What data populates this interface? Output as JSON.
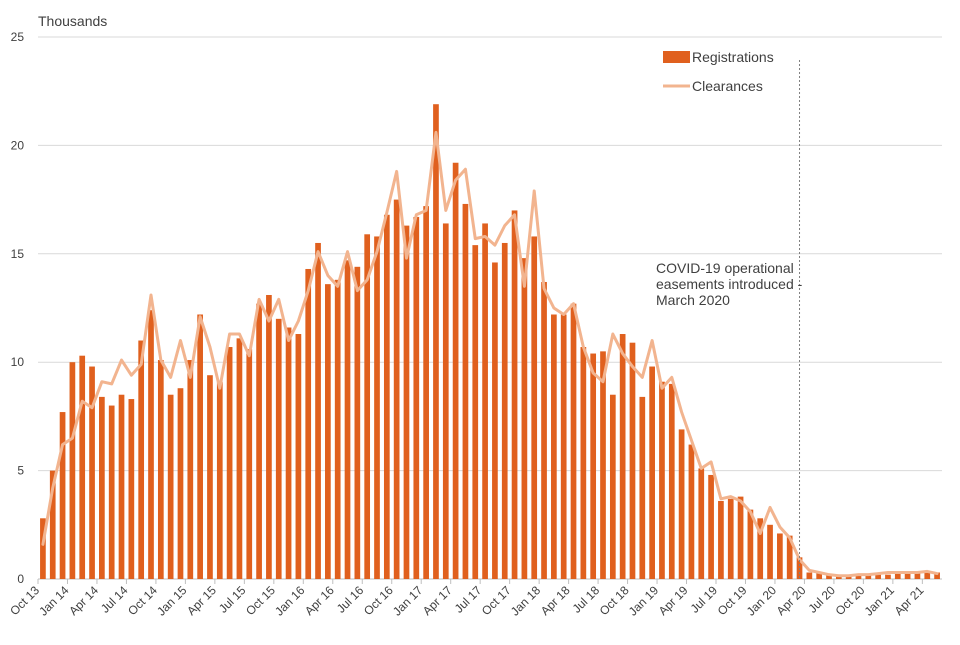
{
  "chart_data": {
    "type": "bar",
    "ylabel": "Thousands",
    "ylim": [
      0,
      25
    ],
    "yticks": [
      0,
      5,
      10,
      15,
      20,
      25
    ],
    "grid": true,
    "legend_position": "top-right",
    "x_tick_labels": [
      "Oct 13",
      "Jan 14",
      "Apr 14",
      "Jul 14",
      "Oct 14",
      "Jan 15",
      "Apr 15",
      "Jul 15",
      "Oct 15",
      "Jan 16",
      "Apr 16",
      "Jul 16",
      "Oct 16",
      "Jan 17",
      "Apr 17",
      "Jul 17",
      "Oct 17",
      "Jan 18",
      "Apr 18",
      "Jul 18",
      "Oct 18",
      "Jan 19",
      "Apr 19",
      "Jul 19",
      "Oct 19",
      "Jan 20",
      "Apr 20",
      "Jul 20",
      "Oct 20",
      "Jan 21",
      "Apr 21"
    ],
    "x_tick_months": [
      0,
      3,
      6,
      9,
      12,
      15,
      18,
      21,
      24,
      27,
      30,
      33,
      36,
      39,
      42,
      45,
      48,
      51,
      54,
      57,
      60,
      63,
      66,
      69,
      72,
      75,
      78,
      81,
      84,
      87,
      90
    ],
    "series": [
      {
        "name": "Registrations",
        "kind": "bar",
        "color": "#e0601e",
        "values": [
          2.8,
          5.0,
          7.7,
          10.0,
          10.3,
          9.8,
          8.4,
          8.0,
          8.5,
          8.3,
          11.0,
          12.4,
          10.1,
          8.5,
          8.8,
          10.1,
          12.2,
          9.4,
          9.1,
          10.7,
          11.1,
          10.6,
          12.7,
          13.1,
          12.0,
          11.6,
          11.3,
          14.3,
          15.5,
          13.6,
          13.8,
          14.7,
          14.4,
          15.9,
          15.8,
          16.8,
          17.5,
          16.3,
          16.7,
          17.2,
          21.9,
          16.4,
          19.2,
          17.3,
          15.4,
          16.4,
          14.6,
          15.5,
          17.0,
          14.8,
          15.8,
          13.7,
          12.2,
          12.2,
          12.7,
          10.7,
          10.4,
          10.5,
          8.5,
          11.3,
          10.9,
          8.4,
          9.8,
          9.1,
          9.0,
          6.9,
          6.2,
          5.1,
          4.8,
          3.6,
          3.7,
          3.8,
          3.2,
          2.8,
          2.5,
          2.1,
          2.0,
          1.0,
          0.3,
          0.3,
          0.2,
          0.2,
          0.15,
          0.15,
          0.2,
          0.2,
          0.2,
          0.25,
          0.25,
          0.3,
          0.3,
          0.3
        ]
      },
      {
        "name": "Clearances",
        "kind": "line",
        "color": "#f2b48f",
        "values": [
          1.6,
          4.2,
          6.2,
          6.5,
          8.2,
          7.9,
          9.1,
          9.0,
          10.1,
          9.4,
          9.9,
          13.1,
          10.1,
          9.3,
          11.0,
          9.3,
          12.1,
          10.7,
          8.8,
          11.3,
          11.3,
          10.3,
          12.9,
          11.9,
          12.9,
          11.0,
          11.9,
          13.3,
          15.1,
          14.0,
          13.5,
          15.1,
          13.3,
          13.8,
          15.1,
          16.9,
          18.8,
          14.8,
          16.8,
          17.0,
          20.6,
          17.0,
          18.4,
          18.9,
          15.7,
          15.8,
          15.4,
          16.3,
          16.8,
          13.5,
          17.9,
          13.4,
          12.5,
          12.2,
          12.7,
          10.7,
          9.5,
          9.1,
          11.3,
          10.4,
          9.8,
          9.3,
          11.0,
          8.8,
          9.3,
          7.7,
          6.4,
          5.1,
          5.4,
          3.7,
          3.8,
          3.6,
          3.1,
          2.1,
          3.3,
          2.4,
          1.9,
          0.9,
          0.4,
          0.3,
          0.2,
          0.15,
          0.15,
          0.2,
          0.2,
          0.25,
          0.3,
          0.3,
          0.3,
          0.3,
          0.35,
          0.25
        ]
      }
    ],
    "annotation": {
      "lines": [
        "COVID-19 operational",
        "easements introduced -",
        "March 2020"
      ],
      "marker_month": 77.5,
      "line_style": "dashed"
    }
  }
}
